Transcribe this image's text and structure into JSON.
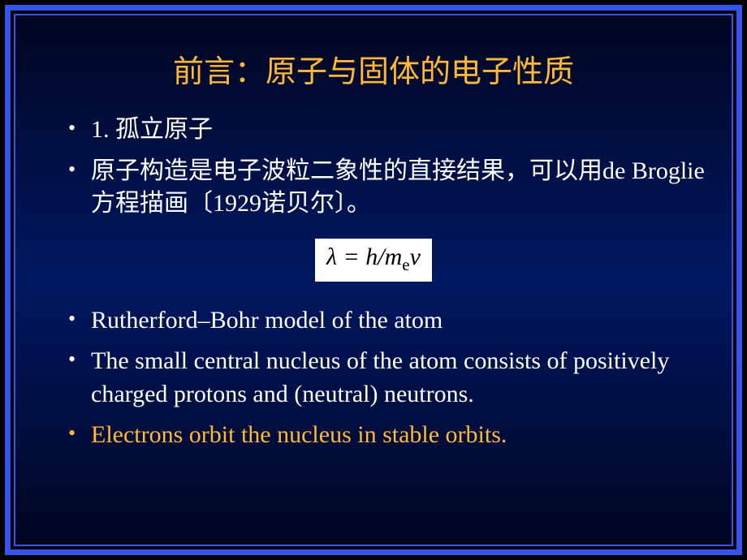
{
  "slide": {
    "title": "前言：原子与固体的电子性质",
    "title_color": "#ffb838",
    "title_fontsize": 38,
    "background_gradient": [
      "#000520",
      "#001048",
      "#001860"
    ],
    "border_color": "#3355ee",
    "border_outer_width": 7,
    "border_inner_width": 2,
    "text_color": "#ffffff",
    "body_fontsize": 30,
    "bullets_top": [
      {
        "text": "1. 孤立原子"
      },
      {
        "text": "原子构造是电子波粒二象性的直接结果，可以用de Broglie方程描画〔1929诺贝尔〕。"
      }
    ],
    "formula": {
      "lambda": "λ",
      "eq": " = ",
      "h": "h",
      "slash": "/",
      "m": "m",
      "sub_e": "e",
      "v": "v",
      "background": "#ffffff",
      "color": "#000000",
      "fontsize": 30
    },
    "bullets_bottom": [
      {
        "text": "Rutherford–Bohr model of the atom",
        "orange": false
      },
      {
        "text": "The small central nucleus of the atom consists of positively charged protons and (neutral) neutrons.",
        "orange": false
      },
      {
        "text": "Electrons orbit the nucleus in stable orbits.",
        "orange": true
      }
    ]
  }
}
